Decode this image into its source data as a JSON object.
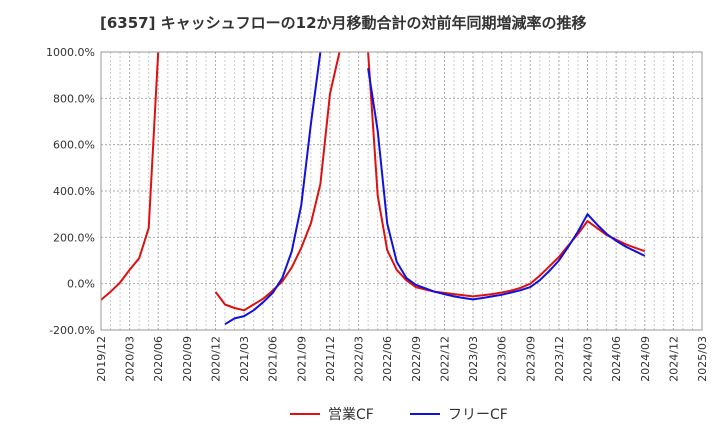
{
  "title": "[6357]  キャッシュフローの12か月移動合計の対前年同期増減率の推移",
  "legend": [
    {
      "label": "営業CF",
      "color": "#dd1111"
    },
    {
      "label": "フリーCF",
      "color": "#1111dd"
    }
  ],
  "chart_data": {
    "type": "line",
    "title": "[6357]  キャッシュフローの12か月移動合計の対前年同期増減率の推移",
    "xlabel": "",
    "ylabel": "",
    "ylim": [
      -200,
      1000
    ],
    "xlim": [
      "2019-12",
      "2025-03"
    ],
    "grid": true,
    "legend_position": "bottom",
    "y_ticks": [
      "1000.0%",
      "800.0%",
      "600.0%",
      "400.0%",
      "200.0%",
      "0.0%",
      "-200.0%"
    ],
    "x_ticks": [
      "2019/12",
      "2020/03",
      "2020/06",
      "2020/09",
      "2020/12",
      "2021/03",
      "2021/06",
      "2021/09",
      "2021/12",
      "2022/03",
      "2022/06",
      "2022/09",
      "2022/12",
      "2023/03",
      "2023/06",
      "2023/09",
      "2023/12",
      "2024/03",
      "2024/06",
      "2024/09",
      "2024/12",
      "2025/03"
    ],
    "series": [
      {
        "name": "営業CF",
        "color": "#dd1111",
        "points": [
          [
            "2019-12",
            -70
          ],
          [
            "2020-01",
            -35
          ],
          [
            "2020-02",
            5
          ],
          [
            "2020-03",
            60
          ],
          [
            "2020-04",
            110
          ],
          [
            "2020-05",
            240
          ],
          [
            "2020-06",
            1000
          ],
          null,
          [
            "2020-12",
            -35
          ],
          [
            "2021-01",
            -90
          ],
          [
            "2021-02",
            -105
          ],
          [
            "2021-03",
            -115
          ],
          [
            "2021-04",
            -90
          ],
          [
            "2021-05",
            -65
          ],
          [
            "2021-06",
            -30
          ],
          [
            "2021-07",
            10
          ],
          [
            "2021-08",
            70
          ],
          [
            "2021-09",
            155
          ],
          [
            "2021-10",
            260
          ],
          [
            "2021-11",
            430
          ],
          [
            "2021-12",
            820
          ],
          [
            "2022-01",
            1000
          ],
          null,
          [
            "2022-04",
            1000
          ],
          [
            "2022-05",
            380
          ],
          [
            "2022-06",
            145
          ],
          [
            "2022-07",
            60
          ],
          [
            "2022-08",
            15
          ],
          [
            "2022-09",
            -15
          ],
          [
            "2022-10",
            -25
          ],
          [
            "2022-11",
            -35
          ],
          [
            "2022-12",
            -40
          ],
          [
            "2023-01",
            -45
          ],
          [
            "2023-02",
            -50
          ],
          [
            "2023-03",
            -55
          ],
          [
            "2023-04",
            -50
          ],
          [
            "2023-05",
            -45
          ],
          [
            "2023-06",
            -38
          ],
          [
            "2023-07",
            -30
          ],
          [
            "2023-08",
            -18
          ],
          [
            "2023-09",
            0
          ],
          [
            "2023-10",
            35
          ],
          [
            "2023-11",
            75
          ],
          [
            "2023-12",
            115
          ],
          [
            "2024-01",
            165
          ],
          [
            "2024-02",
            215
          ],
          [
            "2024-03",
            270
          ],
          [
            "2024-04",
            240
          ],
          [
            "2024-05",
            210
          ],
          [
            "2024-06",
            190
          ],
          [
            "2024-07",
            170
          ],
          [
            "2024-08",
            155
          ],
          [
            "2024-09",
            140
          ]
        ]
      },
      {
        "name": "フリーCF",
        "color": "#1111dd",
        "points": [
          [
            "2021-01",
            -175
          ],
          [
            "2021-02",
            -150
          ],
          [
            "2021-03",
            -140
          ],
          [
            "2021-04",
            -115
          ],
          [
            "2021-05",
            -80
          ],
          [
            "2021-06",
            -40
          ],
          [
            "2021-07",
            25
          ],
          [
            "2021-08",
            140
          ],
          [
            "2021-09",
            340
          ],
          [
            "2021-10",
            690
          ],
          [
            "2021-11",
            1000
          ],
          null,
          [
            "2022-04",
            930
          ],
          [
            "2022-05",
            660
          ],
          [
            "2022-06",
            260
          ],
          [
            "2022-07",
            95
          ],
          [
            "2022-08",
            25
          ],
          [
            "2022-09",
            -5
          ],
          [
            "2022-10",
            -20
          ],
          [
            "2022-11",
            -35
          ],
          [
            "2022-12",
            -45
          ],
          [
            "2023-01",
            -55
          ],
          [
            "2023-02",
            -62
          ],
          [
            "2023-03",
            -68
          ],
          [
            "2023-04",
            -62
          ],
          [
            "2023-05",
            -55
          ],
          [
            "2023-06",
            -48
          ],
          [
            "2023-07",
            -38
          ],
          [
            "2023-08",
            -28
          ],
          [
            "2023-09",
            -15
          ],
          [
            "2023-10",
            15
          ],
          [
            "2023-11",
            55
          ],
          [
            "2023-12",
            100
          ],
          [
            "2024-01",
            160
          ],
          [
            "2024-02",
            225
          ],
          [
            "2024-03",
            300
          ],
          [
            "2024-04",
            255
          ],
          [
            "2024-05",
            215
          ],
          [
            "2024-06",
            185
          ],
          [
            "2024-07",
            160
          ],
          [
            "2024-08",
            140
          ],
          [
            "2024-09",
            120
          ]
        ]
      }
    ]
  }
}
